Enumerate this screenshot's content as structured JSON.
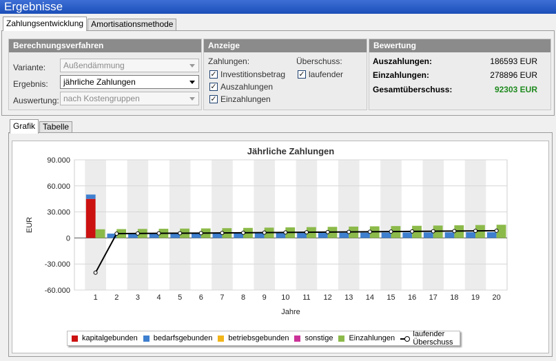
{
  "window": {
    "title": "Ergebnisse"
  },
  "top_tabs": [
    {
      "label": "Zahlungsentwicklung",
      "active": true
    },
    {
      "label": "Amortisationsmethode",
      "active": false
    }
  ],
  "berechnungsverfahren": {
    "header": "Berechnungsverfahren",
    "variante_label": "Variante:",
    "variante_value": "Außendämmung",
    "ergebnis_label": "Ergebnis:",
    "ergebnis_value": "jährliche Zahlungen",
    "auswertung_label": "Auswertung:",
    "auswertung_value": "nach Kostengruppen"
  },
  "anzeige": {
    "header": "Anzeige",
    "zahlungen_label": "Zahlungen:",
    "ueberschuss_label": "Überschuss:",
    "checks": {
      "investitionsbetrag": "Investitionsbetrag",
      "auszahlungen": "Auszahlungen",
      "einzahlungen": "Einzahlungen",
      "laufender": "laufender"
    }
  },
  "bewertung": {
    "header": "Bewertung",
    "auszahlungen_label": "Auszahlungen:",
    "auszahlungen_value": "186593 EUR",
    "einzahlungen_label": "Einzahlungen:",
    "einzahlungen_value": "278896 EUR",
    "gesamt_label": "Gesamtüberschuss:",
    "gesamt_value": "92303 EUR"
  },
  "bottom_tabs": [
    {
      "label": "Grafik",
      "active": true
    },
    {
      "label": "Tabelle",
      "active": false
    }
  ],
  "legend": {
    "kapitalgebunden": "kapitalgebunden",
    "bedarfsgebunden": "bedarfsgebunden",
    "betriebsgebunden": "betriebsgebunden",
    "sonstige": "sonstige",
    "einzahlungen": "Einzahlungen",
    "laufender": "laufender Überschuss"
  },
  "colors": {
    "kapitalgebunden": "#cc1111",
    "bedarfsgebunden": "#3e7fcf",
    "betriebsgebunden": "#f2b51a",
    "sonstige": "#cc3399",
    "einzahlungen": "#8cba4a",
    "laufender": "#000000",
    "gesamt_value": "#1f8a1f"
  },
  "chart_data": {
    "type": "bar",
    "title": "Jährliche Zahlungen",
    "xlabel": "Jahre",
    "ylabel": "EUR",
    "ylim": [
      -60000,
      90000
    ],
    "yticks": [
      90000,
      60000,
      30000,
      0,
      -30000,
      -60000
    ],
    "ytick_labels": [
      "90.000",
      "60.000",
      "30.000",
      "0",
      "-30.000",
      "-60.000"
    ],
    "categories": [
      "1",
      "2",
      "3",
      "4",
      "5",
      "6",
      "7",
      "8",
      "9",
      "10",
      "11",
      "12",
      "13",
      "14",
      "15",
      "16",
      "17",
      "18",
      "19",
      "20"
    ],
    "series": [
      {
        "name": "kapitalgebunden",
        "values": [
          45000,
          0,
          0,
          0,
          0,
          0,
          0,
          0,
          0,
          0,
          0,
          0,
          0,
          0,
          0,
          0,
          0,
          0,
          0,
          0
        ]
      },
      {
        "name": "bedarfsgebunden",
        "values": [
          5000,
          5000,
          5000,
          5100,
          5200,
          5300,
          5400,
          5500,
          5600,
          5700,
          5800,
          5900,
          6000,
          6100,
          6200,
          6300,
          6400,
          6500,
          6600,
          6700
        ]
      },
      {
        "name": "Einzahlungen",
        "values": [
          10000,
          10200,
          10400,
          10600,
          10800,
          11000,
          11300,
          11600,
          11900,
          12200,
          12500,
          12800,
          13100,
          13400,
          13700,
          14000,
          14300,
          14600,
          14900,
          15200
        ]
      },
      {
        "name": "laufender Überschuss",
        "values": [
          -40000,
          5000,
          5200,
          5400,
          5500,
          5600,
          5800,
          6000,
          6200,
          6400,
          6600,
          6800,
          7000,
          7200,
          7400,
          7600,
          7800,
          8000,
          8200,
          8400
        ]
      }
    ],
    "grid": true,
    "legend_position": "bottom"
  }
}
